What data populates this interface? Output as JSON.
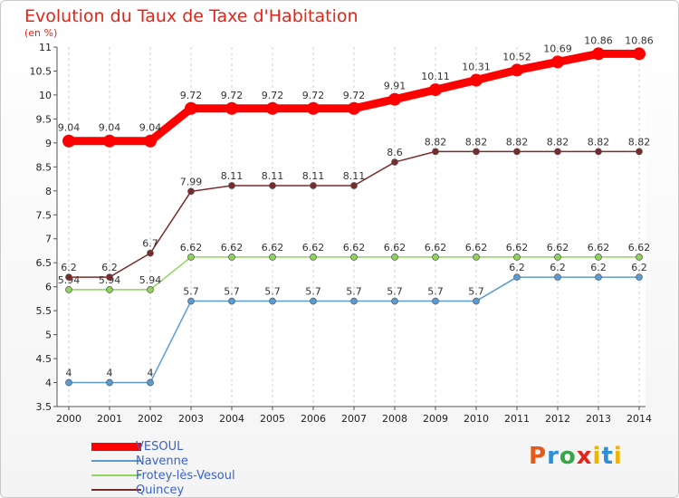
{
  "title": "Evolution du Taux de Taxe d'Habitation",
  "subtitle": "(en %)",
  "logo": "Proxiti",
  "chart_data": {
    "type": "line",
    "title": "Evolution du Taux de Taxe d'Habitation",
    "subtitle": "(en %)",
    "x": [
      "2000",
      "2001",
      "2002",
      "2003",
      "2004",
      "2005",
      "2006",
      "2007",
      "2008",
      "2009",
      "2010",
      "2011",
      "2012",
      "2013",
      "2014"
    ],
    "yticks": [
      "3.5",
      "4",
      "4.5",
      "5",
      "5.5",
      "6",
      "6.5",
      "7",
      "7.5",
      "8",
      "8.5",
      "9",
      "9.5",
      "10",
      "10.5",
      "11"
    ],
    "ylim": [
      3.5,
      11
    ],
    "grid": "vertical-dashed",
    "legend_position": "bottom-left",
    "series": [
      {
        "name": "VESOUL",
        "color": "#ff0000",
        "values": [
          9.04,
          9.04,
          9.04,
          9.72,
          9.72,
          9.72,
          9.72,
          9.72,
          9.91,
          10.11,
          10.31,
          10.52,
          10.69,
          10.86,
          10.86
        ],
        "labels": [
          "9.04",
          "9.04",
          "9.04",
          "9.72",
          "9.72",
          "9.72",
          "9.72",
          "9.72",
          "9.91",
          "10.11",
          "10.31",
          "10.52",
          "10.69",
          "10.86",
          "10.86"
        ]
      },
      {
        "name": "Navenne",
        "color": "#5a9bd4",
        "values": [
          4,
          4,
          4,
          5.7,
          5.7,
          5.7,
          5.7,
          5.7,
          5.7,
          5.7,
          5.7,
          6.2,
          6.2,
          6.2,
          6.2
        ],
        "labels": [
          "4",
          "4",
          "4",
          "5.7",
          "5.7",
          "5.7",
          "5.7",
          "5.7",
          "5.7",
          "5.7",
          "5.7",
          "6.2",
          "6.2",
          "6.2",
          "6.2"
        ]
      },
      {
        "name": "Frotey-lès-Vesoul",
        "color": "#8ed35a",
        "values": [
          5.94,
          5.94,
          5.94,
          6.62,
          6.62,
          6.62,
          6.62,
          6.62,
          6.62,
          6.62,
          6.62,
          6.62,
          6.62,
          6.62,
          6.62
        ],
        "labels": [
          "5.94",
          "5.94",
          "5.94",
          "6.62",
          "6.62",
          "6.62",
          "6.62",
          "6.62",
          "6.62",
          "6.62",
          "6.62",
          "6.62",
          "6.62",
          "6.62",
          "6.62"
        ]
      },
      {
        "name": "Quincey",
        "color": "#7a2a2a",
        "values": [
          6.2,
          6.2,
          6.7,
          7.99,
          8.11,
          8.11,
          8.11,
          8.11,
          8.6,
          8.82,
          8.82,
          8.82,
          8.82,
          8.82,
          8.82
        ],
        "labels": [
          "6.2",
          "6.2",
          "6.7",
          "7.99",
          "8.11",
          "8.11",
          "8.11",
          "8.11",
          "8.6",
          "8.82",
          "8.82",
          "8.82",
          "8.82",
          "8.82",
          "8.82"
        ]
      }
    ]
  }
}
